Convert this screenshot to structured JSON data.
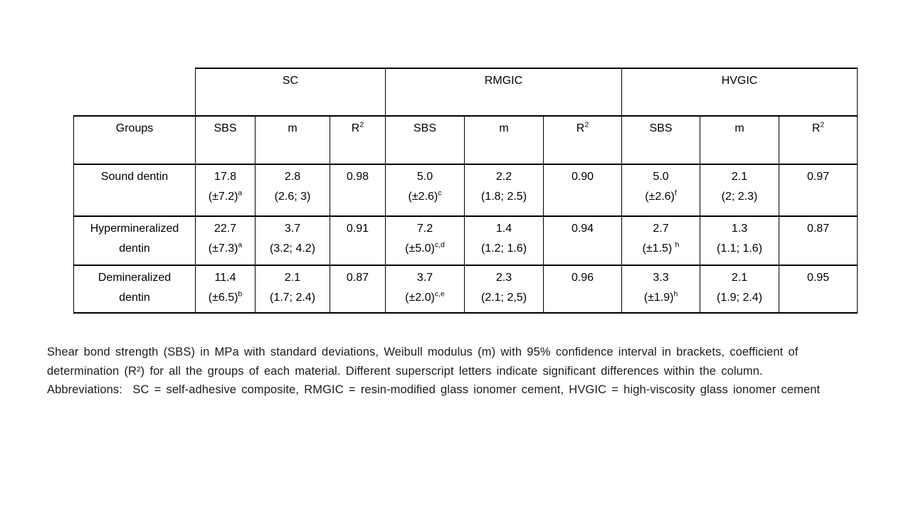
{
  "table": {
    "material_headers": [
      "SC",
      "RMGIC",
      "HVGIC"
    ],
    "groups_header": "Groups",
    "sub_headers": [
      {
        "t": "SBS",
        "sup": ""
      },
      {
        "t": "m",
        "sup": ""
      },
      {
        "t": "R",
        "sup": "2"
      }
    ],
    "rows": [
      {
        "group": "Sound dentin",
        "cells": [
          {
            "l1": "17.8",
            "l2": "(±7.2)",
            "sup": "a"
          },
          {
            "l1": "2.8",
            "l2": "(2.6; 3)",
            "sup": ""
          },
          {
            "l1": "0.98",
            "l2": "",
            "sup": ""
          },
          {
            "l1": "5.0",
            "l2": "(±2.6)",
            "sup": "c"
          },
          {
            "l1": "2.2",
            "l2": "(1.8; 2.5)",
            "sup": ""
          },
          {
            "l1": "0.90",
            "l2": "",
            "sup": ""
          },
          {
            "l1": "5.0",
            "l2": "(±2.6)",
            "sup": "f"
          },
          {
            "l1": "2.1",
            "l2": "(2; 2.3)",
            "sup": ""
          },
          {
            "l1": "0.97",
            "l2": "",
            "sup": ""
          }
        ]
      },
      {
        "group": "Hypermineralized\ndentin",
        "cells": [
          {
            "l1": "22.7",
            "l2": "(±7.3)",
            "sup": "a"
          },
          {
            "l1": "3.7",
            "l2": "(3.2; 4.2)",
            "sup": ""
          },
          {
            "l1": "0.91",
            "l2": "",
            "sup": ""
          },
          {
            "l1": "7.2",
            "l2": "(±5.0)",
            "sup": "c,d"
          },
          {
            "l1": "1.4",
            "l2": "(1.2; 1.6)",
            "sup": ""
          },
          {
            "l1": "0.94",
            "l2": "",
            "sup": ""
          },
          {
            "l1": "2.7",
            "l2": "(±1.5) ",
            "sup": "h"
          },
          {
            "l1": "1.3",
            "l2": "(1.1; 1.6)",
            "sup": ""
          },
          {
            "l1": "0.87",
            "l2": "",
            "sup": ""
          }
        ]
      },
      {
        "group": "Demineralized\ndentin",
        "cells": [
          {
            "l1": "11.4",
            "l2": "(±6.5)",
            "sup": "b"
          },
          {
            "l1": "2.1",
            "l2": "(1.7; 2.4)",
            "sup": ""
          },
          {
            "l1": "0.87",
            "l2": "",
            "sup": ""
          },
          {
            "l1": "3.7",
            "l2": "(±2.0)",
            "sup": "c,e"
          },
          {
            "l1": "2.3",
            "l2": "(2.1; 2,5)",
            "sup": ""
          },
          {
            "l1": "0.96",
            "l2": "",
            "sup": ""
          },
          {
            "l1": "3.3",
            "l2": "(±1.9)",
            "sup": "h"
          },
          {
            "l1": "2.1",
            "l2": "(1.9; 2.4)",
            "sup": ""
          },
          {
            "l1": "0.95",
            "l2": "",
            "sup": ""
          }
        ]
      }
    ]
  },
  "caption": {
    "lines": [
      "Shear bond strength (SBS) in MPa with standard deviations, Weibull modulus (m) with 95% confidence interval in brackets, coefficient of",
      "determination (R²) for all the groups of each material. Different superscript letters indicate significant differences within the column.",
      "Abbreviations:  SC = self-adhesive composite, RMGIC = resin-modified glass ionomer cement, HVGIC = high-viscosity glass ionomer cement"
    ]
  }
}
